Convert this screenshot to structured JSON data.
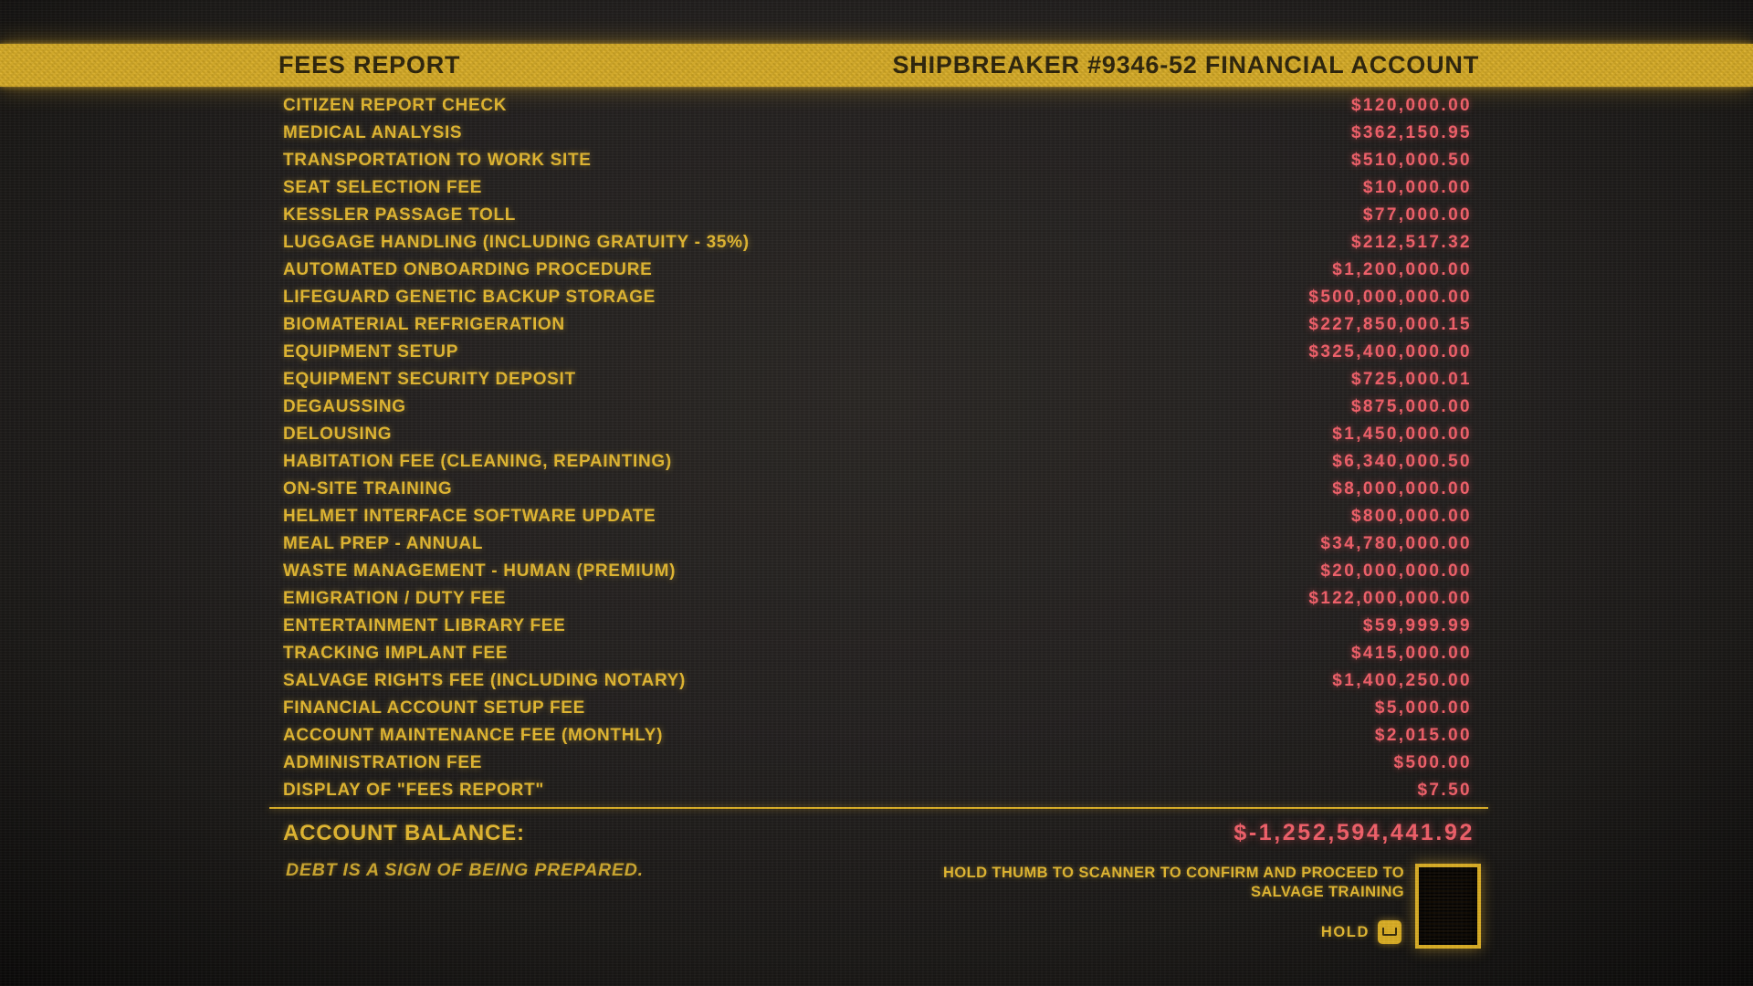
{
  "header": {
    "left_title": "FEES REPORT",
    "right_title": "SHIPBREAKER #9346-52 FINANCIAL ACCOUNT"
  },
  "fees": [
    {
      "label": "CITIZEN REPORT CHECK",
      "amount": "$120,000.00"
    },
    {
      "label": "MEDICAL ANALYSIS",
      "amount": "$362,150.95"
    },
    {
      "label": "TRANSPORTATION TO WORK SITE",
      "amount": "$510,000.50"
    },
    {
      "label": "SEAT SELECTION FEE",
      "amount": "$10,000.00"
    },
    {
      "label": "KESSLER PASSAGE TOLL",
      "amount": "$77,000.00"
    },
    {
      "label": "LUGGAGE HANDLING (INCLUDING GRATUITY - 35%)",
      "amount": "$212,517.32"
    },
    {
      "label": "AUTOMATED ONBOARDING PROCEDURE",
      "amount": "$1,200,000.00"
    },
    {
      "label": "LIFEGUARD GENETIC BACKUP STORAGE",
      "amount": "$500,000,000.00"
    },
    {
      "label": "BIOMATERIAL REFRIGERATION",
      "amount": "$227,850,000.15"
    },
    {
      "label": "EQUIPMENT SETUP",
      "amount": "$325,400,000.00"
    },
    {
      "label": "EQUIPMENT SECURITY DEPOSIT",
      "amount": "$725,000.01"
    },
    {
      "label": "DEGAUSSING",
      "amount": "$875,000.00"
    },
    {
      "label": "DELOUSING",
      "amount": "$1,450,000.00"
    },
    {
      "label": "HABITATION FEE (CLEANING, REPAINTING)",
      "amount": "$6,340,000.50"
    },
    {
      "label": "ON-SITE TRAINING",
      "amount": "$8,000,000.00"
    },
    {
      "label": "HELMET INTERFACE SOFTWARE UPDATE",
      "amount": "$800,000.00"
    },
    {
      "label": "MEAL PREP - ANNUAL",
      "amount": "$34,780,000.00"
    },
    {
      "label": "WASTE MANAGEMENT - HUMAN (PREMIUM)",
      "amount": "$20,000,000.00"
    },
    {
      "label": "EMIGRATION / DUTY FEE",
      "amount": "$122,000,000.00"
    },
    {
      "label": "ENTERTAINMENT LIBRARY FEE",
      "amount": "$59,999.99"
    },
    {
      "label": "TRACKING IMPLANT FEE",
      "amount": "$415,000.00"
    },
    {
      "label": "SALVAGE RIGHTS FEE (INCLUDING NOTARY)",
      "amount": "$1,400,250.00"
    },
    {
      "label": "FINANCIAL ACCOUNT SETUP FEE",
      "amount": "$5,000.00"
    },
    {
      "label": "ACCOUNT MAINTENANCE FEE (MONTHLY)",
      "amount": "$2,015.00"
    },
    {
      "label": "ADMINISTRATION FEE",
      "amount": "$500.00"
    },
    {
      "label": "DISPLAY OF \"FEES REPORT\"",
      "amount": "$7.50"
    }
  ],
  "balance": {
    "label": "ACCOUNT BALANCE:",
    "value": "$-1,252,594,441.92"
  },
  "tagline": "DEBT IS A SIGN OF BEING PREPARED.",
  "confirm": {
    "line1": "HOLD THUMB TO SCANNER TO CONFIRM AND PROCEED TO",
    "line2": "SALVAGE TRAINING",
    "hold_label": "HOLD",
    "key_icon": "spacebar-key"
  },
  "colors": {
    "banner": "#d9ad25",
    "banner_text": "#2e250b",
    "label": "#e2b730",
    "amount": "#f2606a"
  }
}
